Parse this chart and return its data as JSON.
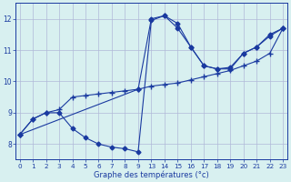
{
  "title": "Graphe des températures (°c)",
  "bg_color": "#d8f0f0",
  "line_color": "#1a3aa0",
  "grid_color": "#b0b8d8",
  "xtick_labels": [
    "0",
    "1",
    "2",
    "3",
    "4",
    "5",
    "6",
    "7",
    "8",
    "9",
    "13",
    "14",
    "15",
    "16",
    "17",
    "18",
    "19",
    "20",
    "21",
    "22",
    "23"
  ],
  "xtick_pos": [
    0,
    1,
    2,
    3,
    4,
    5,
    6,
    7,
    8,
    9,
    10,
    11,
    12,
    13,
    14,
    15,
    16,
    17,
    18,
    19,
    20
  ],
  "yticks": [
    8,
    9,
    10,
    11,
    12
  ],
  "ylim": [
    7.5,
    12.5
  ],
  "xlim": [
    -0.3,
    20.3
  ],
  "series1_x": [
    0,
    1,
    2,
    3,
    4,
    5,
    6,
    7,
    8,
    9,
    10,
    11,
    12,
    13,
    14,
    15,
    16,
    17,
    18,
    19,
    20
  ],
  "series1_y": [
    8.3,
    8.8,
    9.0,
    9.0,
    8.5,
    8.2,
    8.0,
    7.9,
    7.85,
    7.75,
    11.95,
    12.1,
    11.7,
    11.1,
    10.5,
    10.4,
    10.4,
    10.9,
    11.1,
    11.5,
    11.7
  ],
  "series2_x": [
    0,
    1,
    2,
    3,
    4,
    5,
    6,
    7,
    8,
    9,
    10,
    11,
    12,
    13,
    14,
    15,
    16,
    17,
    18,
    19,
    20
  ],
  "series2_y": [
    8.3,
    8.8,
    9.0,
    9.1,
    9.5,
    9.55,
    9.6,
    9.65,
    9.7,
    9.75,
    9.85,
    9.9,
    9.95,
    10.05,
    10.15,
    10.25,
    10.35,
    10.5,
    10.65,
    10.9,
    11.7
  ],
  "series3_x": [
    0,
    9,
    10,
    11,
    12,
    13,
    14,
    15,
    16,
    17,
    18,
    19,
    20
  ],
  "series3_y": [
    8.3,
    9.75,
    12.0,
    12.1,
    11.85,
    11.1,
    10.5,
    10.4,
    10.45,
    10.9,
    11.1,
    11.45,
    11.7
  ]
}
